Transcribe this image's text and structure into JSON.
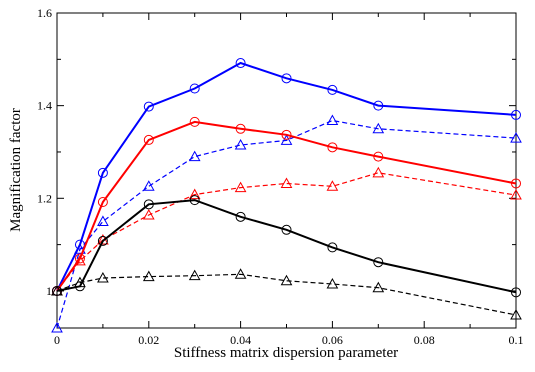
{
  "chart_data": {
    "type": "line",
    "title": "",
    "xlabel": "Stiffness matrix dispersion parameter",
    "ylabel": "Magnification factor",
    "xlim": [
      0,
      0.1
    ],
    "ylim": [
      0.92,
      1.6
    ],
    "x_ticks": [
      0,
      0.02,
      0.04,
      0.06,
      0.08,
      0.1
    ],
    "x_tick_labels": [
      "0",
      "0.02",
      "0.04",
      "0.06",
      "0.08",
      "0.1"
    ],
    "y_ticks": [
      1.2,
      1.4,
      1.6
    ],
    "y_tick_labels": [
      "1.2",
      "1.4",
      "1.6"
    ],
    "y_partial_label": {
      "value": 1.0,
      "text": "1"
    },
    "grid": false,
    "legend": "none",
    "series": [
      {
        "color": "#0000ff",
        "style": "solid",
        "marker": "circle",
        "x": [
          0,
          0.005,
          0.01,
          0.02,
          0.03,
          0.04,
          0.05,
          0.06,
          0.07,
          0.1
        ],
        "y": [
          1.0,
          1.1,
          1.255,
          1.398,
          1.437,
          1.492,
          1.459,
          1.434,
          1.4,
          1.38
        ]
      },
      {
        "color": "#0000ff",
        "style": "dashed",
        "marker": "triangle",
        "x": [
          0,
          0.005,
          0.01,
          0.02,
          0.03,
          0.04,
          0.05,
          0.06,
          0.07,
          0.1
        ],
        "y": [
          0.92,
          1.09,
          1.15,
          1.226,
          1.29,
          1.315,
          1.325,
          1.368,
          1.35,
          1.33
        ]
      },
      {
        "color": "#ff0000",
        "style": "solid",
        "marker": "circle",
        "x": [
          0,
          0.005,
          0.01,
          0.02,
          0.03,
          0.04,
          0.05,
          0.06,
          0.07,
          0.1
        ],
        "y": [
          1.0,
          1.07,
          1.192,
          1.326,
          1.365,
          1.35,
          1.337,
          1.31,
          1.29,
          1.232
        ]
      },
      {
        "color": "#ff0000",
        "style": "dashed",
        "marker": "triangle",
        "x": [
          0,
          0.005,
          0.01,
          0.02,
          0.03,
          0.04,
          0.05,
          0.06,
          0.07,
          0.1
        ],
        "y": [
          1.0,
          1.065,
          1.11,
          1.164,
          1.208,
          1.223,
          1.232,
          1.226,
          1.255,
          1.207
        ]
      },
      {
        "color": "#000000",
        "style": "solid",
        "marker": "circle",
        "x": [
          0,
          0.005,
          0.01,
          0.02,
          0.03,
          0.04,
          0.05,
          0.06,
          0.07,
          0.1
        ],
        "y": [
          1.0,
          1.01,
          1.108,
          1.187,
          1.196,
          1.16,
          1.132,
          1.094,
          1.062,
          0.997
        ]
      },
      {
        "color": "#000000",
        "style": "dashed",
        "marker": "triangle",
        "x": [
          0,
          0.005,
          0.01,
          0.02,
          0.03,
          0.04,
          0.05,
          0.06,
          0.07,
          0.1
        ],
        "y": [
          1.0,
          1.018,
          1.028,
          1.031,
          1.033,
          1.036,
          1.022,
          1.015,
          1.007,
          0.948
        ]
      }
    ]
  }
}
